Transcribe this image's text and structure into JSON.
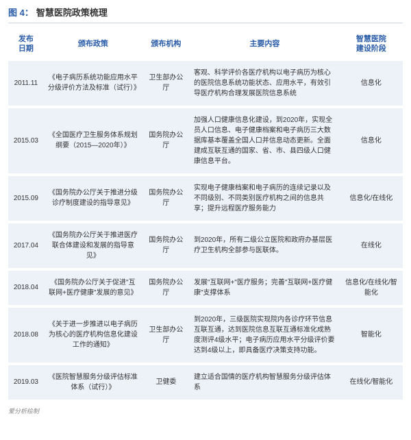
{
  "title_prefix": "图 4：",
  "title_text": "智慧医院政策梳理",
  "columns": {
    "date": "发布\n日期",
    "policy": "颁布政策",
    "org": "颁布机构",
    "content": "主要内容",
    "stage": "智慧医院\n建设阶段"
  },
  "rows": [
    {
      "date": "2011.11",
      "policy": "《电子病历系统功能应用水平分级评价方法及标准（试行）》",
      "org": "卫生部办公厅",
      "content": "客观、科学评价各医疗机构以电子病历为核心的医院信息系统功能状态、应用水平，有效引导医疗机构合理发展医院信息系统",
      "stage": "信息化"
    },
    {
      "date": "2015.03",
      "policy": "《全国医疗卫生服务体系规划纲要（2015—2020年）》",
      "org": "国务院办公厅",
      "content": "加强人口健康信息化建设，到2020年，实现全员人口信息、电子健康档案和电子病历三大数据库基本覆盖全国人口并信息动态更新。全面建成互联互通的国家、省、市、县四级人口健康信息平台。",
      "stage": "信息化"
    },
    {
      "date": "2015.09",
      "policy": "《国务院办公厅关于推进分级诊疗制度建设的指导意见》",
      "org": "国务院办公厅",
      "content": "实现电子健康档案和电子病历的连续记录以及不同级别、不同类别医疗机构之间的信息共享；提升远程医疗服务能力",
      "stage": "信息化/在线化"
    },
    {
      "date": "2017.04",
      "policy": "《国务院办公厅关于推进医疗联合体建设和发展的指导意见》",
      "org": "国务院办公厅",
      "content": "到2020年，所有二级公立医院和政府办基层医疗卫生机构全部参与医联体。",
      "stage": "在线化"
    },
    {
      "date": "2018.04",
      "policy": "《国务院办公厅关于促进\"互联网+医疗健康\"发展的意见》",
      "org": "国务院办公厅",
      "content": "发展\"互联网+\"医疗服务；完善\"互联网+医疗健康\"支撑体系",
      "stage": "信息化/在线化/智能化"
    },
    {
      "date": "2018.08",
      "policy": "《关于进一步推进以电子病历为核心的医疗机构信息化建设工作的通知》",
      "org": "卫生部办公厅",
      "content": "到2020年，三级医院实现院内各诊疗环节信息互联互通，达到医院信息互联互通标准化成熟度测评4级水平；电子病历应用水平分级评价要达到4级以上，即具备医疗决策支持功能。",
      "stage": "智能化"
    },
    {
      "date": "2019.03",
      "policy": "《医院智慧服务分级评估标准体系（试行）》",
      "org": "卫健委",
      "content": "建立适合国情的医疗机构智慧服务分级评估体系",
      "stage": "在线化/智能化"
    }
  ],
  "footer": "爱分析绘制",
  "colors": {
    "accent": "#2a5ca8",
    "row_bg": "#edf1f8",
    "border": "#c5d2e8",
    "footer_text": "#888888"
  }
}
